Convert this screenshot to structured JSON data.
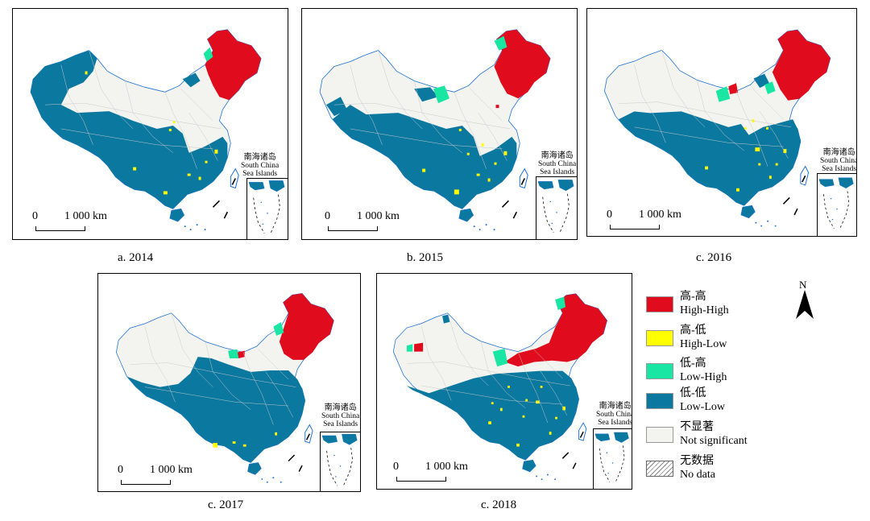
{
  "colors": {
    "high_high": "#e00b1c",
    "high_low": "#ffff00",
    "low_high": "#19e6a2",
    "low_low": "#0b78a0",
    "not_significant": "#f3f3ef",
    "no_data_hatch": "#888888",
    "boundary": "#b8b8b8",
    "coast": "#1a6fd6"
  },
  "panels": [
    {
      "caption": "a. 2014",
      "scale_zero": "0",
      "scale_label": "1 000 km",
      "inset_zh": "南海诸岛",
      "inset_en1": "South China",
      "inset_en2": "Sea Islands"
    },
    {
      "caption": "b. 2015",
      "scale_zero": "0",
      "scale_label": "1 000 km",
      "inset_zh": "南海诸岛",
      "inset_en1": "South China",
      "inset_en2": "Sea Islands"
    },
    {
      "caption": "c. 2016",
      "scale_zero": "0",
      "scale_label": "1 000 km",
      "inset_zh": "南海诸岛",
      "inset_en1": "South China",
      "inset_en2": "Sea Islands"
    },
    {
      "caption": "c. 2017",
      "scale_zero": "0",
      "scale_label": "1 000 km",
      "inset_zh": "南海诸岛",
      "inset_en1": "South China",
      "inset_en2": "Sea Islands"
    },
    {
      "caption": "c. 2018",
      "scale_zero": "0",
      "scale_label": "1 000 km",
      "inset_zh": "南海诸岛",
      "inset_en1": "South China",
      "inset_en2": "Sea Islands"
    }
  ],
  "legend": [
    {
      "zh": "高-高",
      "en": "High-High",
      "swatch": "high_high"
    },
    {
      "zh": "高-低",
      "en": "High-Low",
      "swatch": "high_low"
    },
    {
      "zh": "低-高",
      "en": "Low-High",
      "swatch": "low_high"
    },
    {
      "zh": "低-低",
      "en": "Low-Low",
      "swatch": "low_low"
    },
    {
      "zh": "不显著",
      "en": "Not significant",
      "swatch": "not_significant"
    },
    {
      "zh": "无数据",
      "en": "No data",
      "swatch": "no_data"
    }
  ],
  "north_label": "N"
}
